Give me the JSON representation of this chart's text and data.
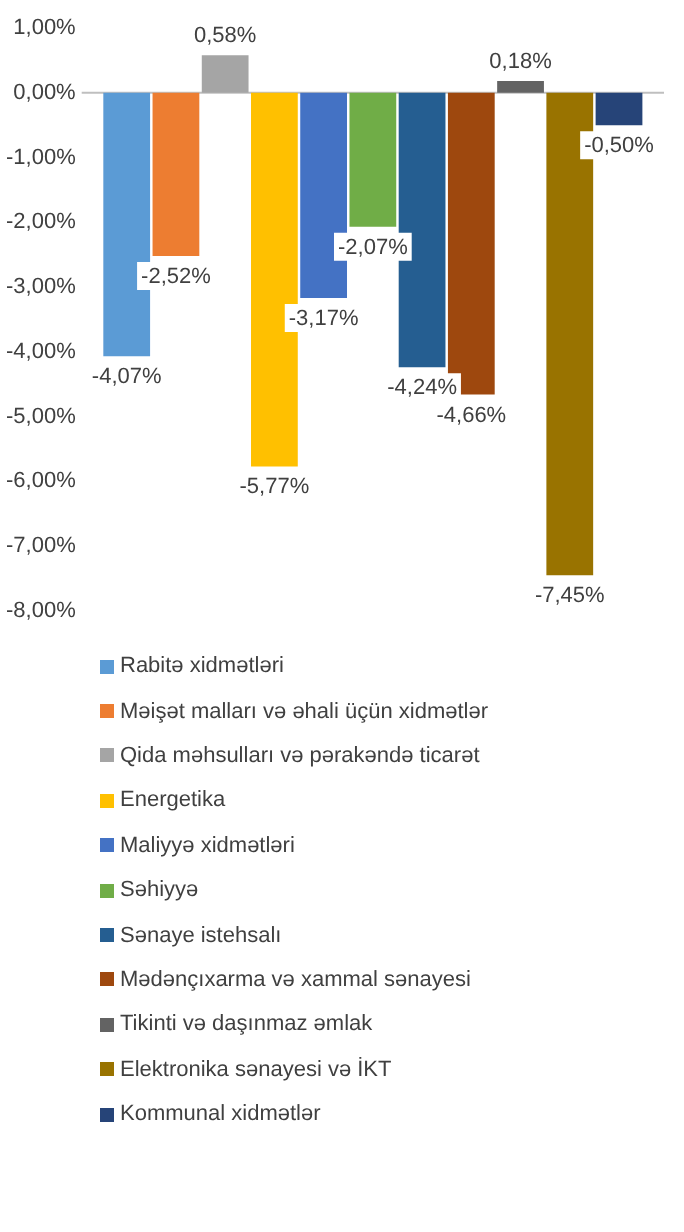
{
  "chart_data": {
    "type": "bar",
    "categories": [
      null
    ],
    "series": [
      {
        "name": "Rabitə xidmətləri",
        "color": "#5b9bd5",
        "values": [
          -4.07
        ],
        "value_labels": [
          "-4,07%"
        ]
      },
      {
        "name": "Məişət malları və əhali üçün xidmətlər",
        "color": "#ed7d31",
        "values": [
          -2.52
        ],
        "value_labels": [
          "-2,52%"
        ]
      },
      {
        "name": "Qida məhsulları və pərakəndə ticarət",
        "color": "#a5a5a5",
        "values": [
          0.58
        ],
        "value_labels": [
          "0,58%"
        ]
      },
      {
        "name": "Energetika",
        "color": "#ffc000",
        "values": [
          -5.77
        ],
        "value_labels": [
          "-5,77%"
        ]
      },
      {
        "name": "Maliyyə xidmətləri",
        "color": "#4472c4",
        "values": [
          -3.17
        ],
        "value_labels": [
          "-3,17%"
        ]
      },
      {
        "name": "Səhiyyə",
        "color": "#70ad47",
        "values": [
          -2.07
        ],
        "value_labels": [
          "-2,07%"
        ]
      },
      {
        "name": "Sənaye istehsalı",
        "color": "#255e91",
        "values": [
          -4.24
        ],
        "value_labels": [
          "-4,24%"
        ]
      },
      {
        "name": "Mədənçıxarma və xammal sənayesi",
        "color": "#9e480e",
        "values": [
          -4.66
        ],
        "value_labels": [
          "-4,66%"
        ]
      },
      {
        "name": "Tikinti və daşınmaz əmlak",
        "color": "#636363",
        "values": [
          0.18
        ],
        "value_labels": [
          "0,18%"
        ]
      },
      {
        "name": "Elektronika sənayesi və İKT",
        "color": "#997300",
        "values": [
          -7.45
        ],
        "value_labels": [
          "-7,45%"
        ]
      },
      {
        "name": "Kommunal xidmətlər",
        "color": "#264478",
        "values": [
          -0.5
        ],
        "value_labels": [
          "-0,50%"
        ]
      }
    ],
    "ylim": [
      -8,
      1
    ],
    "yticks": [
      {
        "value": 1,
        "label": "1,00%"
      },
      {
        "value": 0,
        "label": "0,00%"
      },
      {
        "value": -1,
        "label": "-1,00%"
      },
      {
        "value": -2,
        "label": "-2,00%"
      },
      {
        "value": -3,
        "label": "-3,00%"
      },
      {
        "value": -4,
        "label": "-4,00%"
      },
      {
        "value": -5,
        "label": "-5,00%"
      },
      {
        "value": -6,
        "label": "-6,00%"
      },
      {
        "value": -7,
        "label": "-7,00%"
      },
      {
        "value": -8,
        "label": "-8,00%"
      }
    ],
    "ref_lines": [
      {
        "axis": "y",
        "value": 0,
        "color": "#bfbfbf"
      }
    ],
    "grid": false,
    "legend": "bottom"
  }
}
